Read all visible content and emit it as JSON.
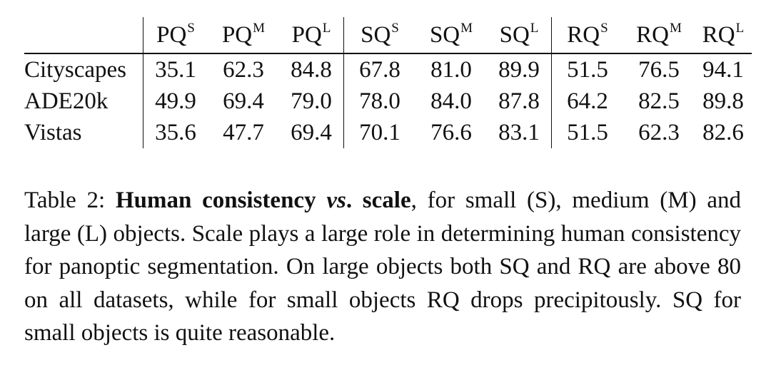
{
  "table": {
    "columns": [
      {
        "base": "PQ",
        "sup": "S"
      },
      {
        "base": "PQ",
        "sup": "M"
      },
      {
        "base": "PQ",
        "sup": "L"
      },
      {
        "base": "SQ",
        "sup": "S"
      },
      {
        "base": "SQ",
        "sup": "M"
      },
      {
        "base": "SQ",
        "sup": "L"
      },
      {
        "base": "RQ",
        "sup": "S"
      },
      {
        "base": "RQ",
        "sup": "M"
      },
      {
        "base": "RQ",
        "sup": "L"
      }
    ],
    "rows": [
      {
        "label": "Cityscapes",
        "values": [
          "35.1",
          "62.3",
          "84.8",
          "67.8",
          "81.0",
          "89.9",
          "51.5",
          "76.5",
          "94.1"
        ]
      },
      {
        "label": "ADE20k",
        "values": [
          "49.9",
          "69.4",
          "79.0",
          "78.0",
          "84.0",
          "87.8",
          "64.2",
          "82.5",
          "89.8"
        ]
      },
      {
        "label": "Vistas",
        "values": [
          "35.6",
          "47.7",
          "69.4",
          "70.1",
          "76.6",
          "83.1",
          "51.5",
          "62.3",
          "82.6"
        ]
      }
    ]
  },
  "caption": {
    "prefix": "Table 2: ",
    "bold_1": "Human consistency ",
    "bold_italic": "vs",
    "bold_2": ". scale",
    "body": ", for small (S), medium (M) and large (L) objects.  Scale plays a large role in determining human consistency for panoptic segmentation. On large objects both SQ and RQ are above 80 on all datasets, while for small objects RQ drops precipitously. SQ for small objects is quite reasonable."
  }
}
